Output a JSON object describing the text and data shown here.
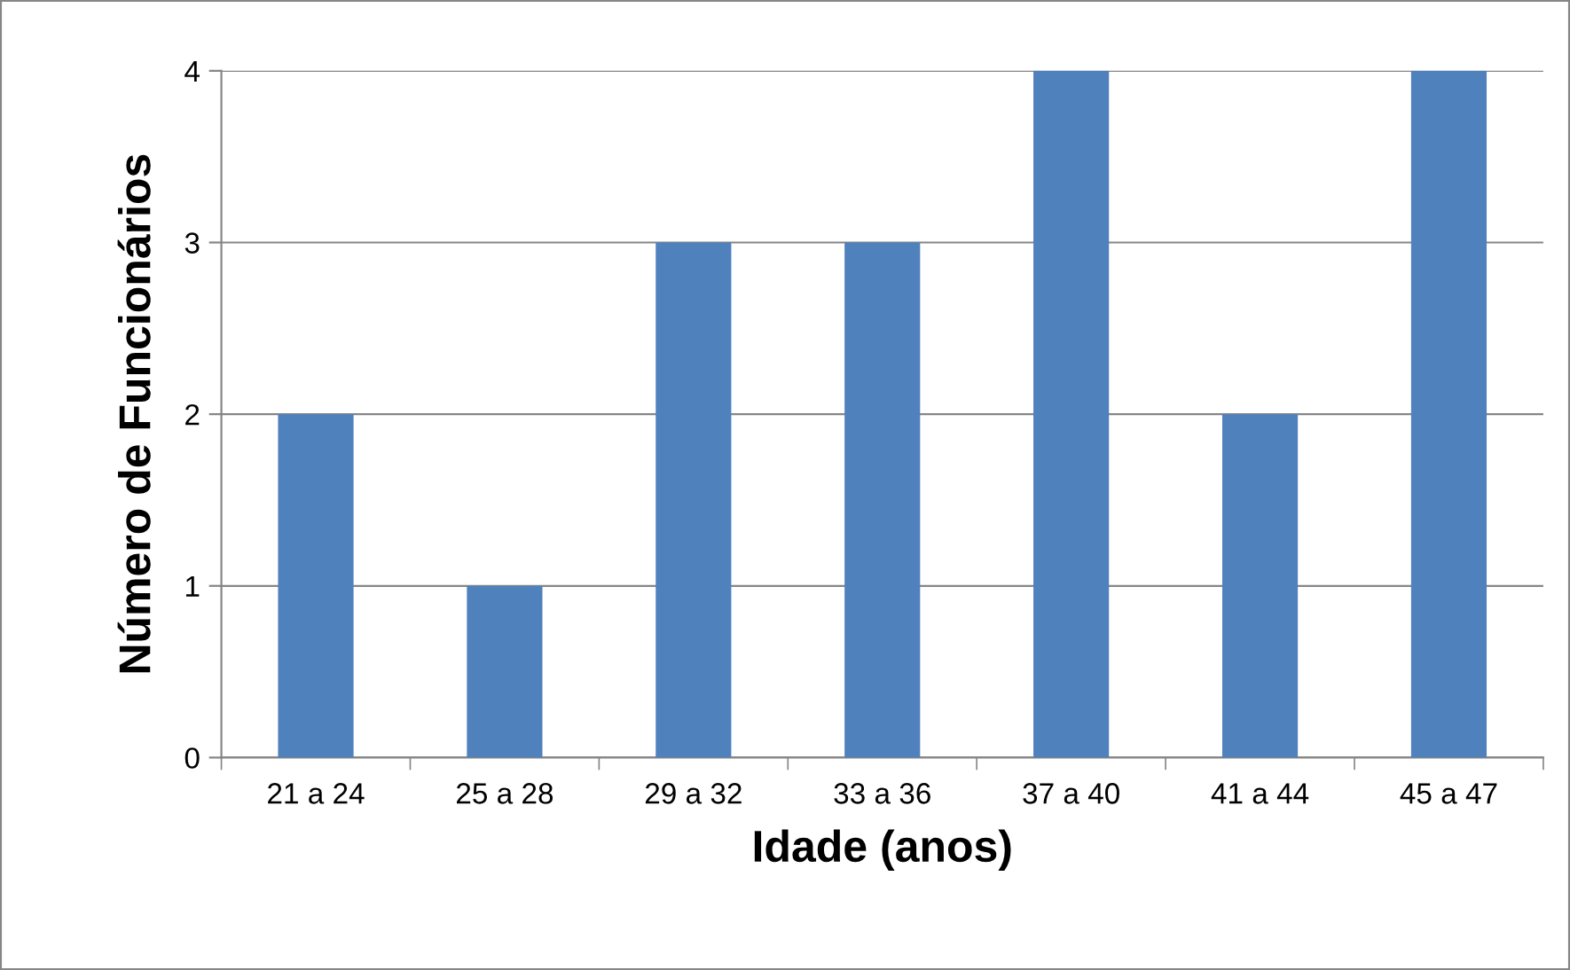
{
  "chart_data": {
    "type": "bar",
    "categories": [
      "21 a 24",
      "25 a 28",
      "29 a 32",
      "33 a 36",
      "37 a 40",
      "41 a 44",
      "45 a 47"
    ],
    "values": [
      2,
      1,
      3,
      3,
      4,
      2,
      4
    ],
    "color": "#4f81bd",
    "xlabel": "Idade (anos)",
    "ylabel": "Número de Funcionários",
    "ylim": [
      0,
      4
    ],
    "yticks": [
      0,
      1,
      2,
      3,
      4
    ],
    "grid": "y",
    "legend": false
  }
}
